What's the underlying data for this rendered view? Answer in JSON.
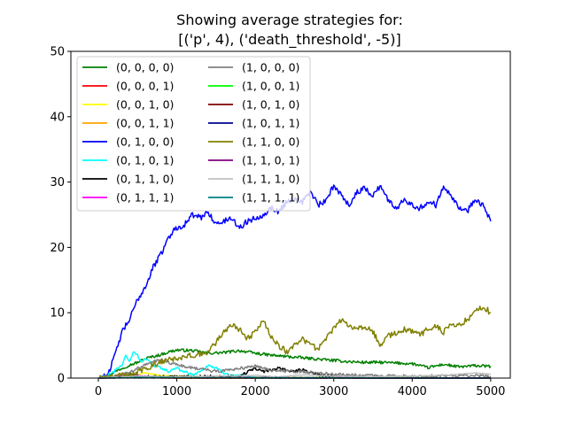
{
  "chart_data": {
    "type": "line",
    "title": "Showing average strategies for:",
    "subtitle": "[('p', 4), ('death_threshold', -5)]",
    "xlabel": "",
    "ylabel": "",
    "xlim": [
      -350,
      5250
    ],
    "ylim": [
      0,
      50
    ],
    "xticks": [
      0,
      1000,
      2000,
      3000,
      4000,
      5000
    ],
    "yticks": [
      0,
      10,
      20,
      30,
      40,
      50
    ],
    "grid": false,
    "legend_position": "upper-left",
    "legend_columns": 2,
    "series": [
      {
        "name": "(0, 0, 0, 0)",
        "color": "#008000",
        "x": [
          0,
          100,
          200,
          300,
          400,
          500,
          600,
          700,
          800,
          900,
          1000,
          1200,
          1400,
          1600,
          1800,
          2000,
          2200,
          2400,
          2600,
          2800,
          3000,
          3200,
          3400,
          3600,
          3800,
          4000,
          4200,
          4400,
          4600,
          4800,
          5000
        ],
        "y": [
          0,
          0.3,
          0.9,
          1.5,
          2,
          2.4,
          3,
          3.3,
          3.6,
          4,
          4.3,
          4.2,
          3.8,
          3.9,
          4.2,
          3.8,
          3.5,
          3.3,
          3.1,
          2.9,
          2.7,
          2.5,
          2.4,
          2.4,
          2.3,
          2.2,
          1.6,
          2.1,
          1.7,
          1.9,
          1.8
        ]
      },
      {
        "name": "(0, 0, 0, 1)",
        "color": "#ff0000",
        "x": [
          0,
          200,
          300,
          400,
          500,
          600,
          1000,
          5000
        ],
        "y": [
          0,
          0.1,
          0.4,
          0.2,
          0.3,
          0.1,
          0,
          0
        ]
      },
      {
        "name": "(0, 0, 1, 0)",
        "color": "#ffff00",
        "x": [
          0,
          200,
          300,
          400,
          500,
          600,
          800,
          1000,
          1200,
          1400,
          5000
        ],
        "y": [
          0,
          0.2,
          0.6,
          0.4,
          0.5,
          0.8,
          0.4,
          0.3,
          0.3,
          0.1,
          0
        ]
      },
      {
        "name": "(0, 0, 1, 1)",
        "color": "#ffa500",
        "x": [
          0,
          200,
          300,
          400,
          600,
          800,
          1000,
          5000
        ],
        "y": [
          0,
          0.1,
          0.3,
          0.2,
          0.2,
          0.1,
          0,
          0
        ]
      },
      {
        "name": "(0, 1, 0, 0)",
        "color": "#0000ff",
        "x": [
          0,
          100,
          150,
          200,
          250,
          300,
          350,
          400,
          450,
          500,
          550,
          600,
          650,
          700,
          750,
          800,
          850,
          900,
          950,
          1000,
          1100,
          1200,
          1300,
          1400,
          1500,
          1600,
          1700,
          1800,
          1900,
          2000,
          2100,
          2200,
          2300,
          2400,
          2500,
          2600,
          2700,
          2800,
          2900,
          3000,
          3100,
          3200,
          3300,
          3400,
          3500,
          3600,
          3700,
          3800,
          3900,
          4000,
          4100,
          4200,
          4300,
          4400,
          4500,
          4600,
          4700,
          4800,
          4900,
          5000
        ],
        "y": [
          0,
          0.3,
          1.5,
          3,
          5,
          7,
          8,
          9,
          10.5,
          12,
          13,
          14,
          15.5,
          17,
          18,
          19,
          20.5,
          21.5,
          22.5,
          23,
          23.5,
          25,
          24.5,
          25.5,
          23.5,
          24,
          24.5,
          23,
          24,
          24.5,
          25,
          26,
          25.5,
          27,
          27.5,
          27,
          28.5,
          26.5,
          27,
          29.5,
          28,
          26.5,
          28.5,
          29,
          28,
          29.5,
          27,
          26,
          27.5,
          26.5,
          26,
          27,
          26.5,
          29.5,
          28,
          26,
          25.5,
          27.5,
          26.5,
          24
        ]
      },
      {
        "name": "(0, 1, 0, 1)",
        "color": "#00ffff",
        "x": [
          0,
          100,
          200,
          300,
          350,
          400,
          450,
          500,
          550,
          600,
          700,
          800,
          900,
          1000,
          1100,
          1200,
          1300,
          1400,
          1500,
          1600,
          1700,
          1800,
          1900,
          2000,
          5000
        ],
        "y": [
          0,
          0.2,
          1,
          2,
          3.5,
          2.5,
          4,
          3.5,
          2.5,
          3,
          2,
          1.5,
          1,
          1.5,
          1,
          0.5,
          1,
          2,
          1.5,
          0.8,
          0.5,
          0.3,
          0.2,
          0,
          0
        ]
      },
      {
        "name": "(0, 1, 1, 0)",
        "color": "#000000",
        "x": [
          0,
          300,
          400,
          500,
          600,
          1000,
          1800,
          2000,
          2100,
          2200,
          2300,
          2400,
          2500,
          2600,
          2700,
          2800,
          3000,
          3500,
          5000
        ],
        "y": [
          0,
          0.3,
          0.5,
          0.3,
          0.2,
          0.2,
          0.3,
          1.5,
          1,
          1.2,
          1.6,
          1.2,
          1,
          1.3,
          0.8,
          0.5,
          0.2,
          0,
          0
        ]
      },
      {
        "name": "(0, 1, 1, 1)",
        "color": "#ff00ff",
        "x": [
          0,
          200,
          300,
          400,
          500,
          800,
          5000
        ],
        "y": [
          0,
          0.2,
          0.5,
          0.3,
          0.4,
          0.1,
          0
        ]
      },
      {
        "name": "(1, 0, 0, 0)",
        "color": "#808080",
        "x": [
          0,
          200,
          400,
          500,
          600,
          700,
          800,
          1000,
          1500,
          2000,
          2200,
          2500,
          3000,
          3500,
          4000,
          4500,
          5000
        ],
        "y": [
          0,
          0.3,
          0.8,
          1.5,
          2,
          2.5,
          2.8,
          2,
          1,
          1.8,
          1.2,
          1,
          0.6,
          0.4,
          0.3,
          0.4,
          0.3
        ]
      },
      {
        "name": "(1, 0, 0, 1)",
        "color": "#00ff00",
        "x": [
          0,
          300,
          500,
          800,
          5000
        ],
        "y": [
          0,
          0.1,
          0.2,
          0.1,
          0
        ]
      },
      {
        "name": "(1, 0, 1, 0)",
        "color": "#800000",
        "x": [
          0,
          300,
          500,
          800,
          5000
        ],
        "y": [
          0,
          0.1,
          0.1,
          0.05,
          0
        ]
      },
      {
        "name": "(1, 0, 1, 1)",
        "color": "#00008b",
        "x": [
          0,
          300,
          500,
          5000
        ],
        "y": [
          0,
          0.05,
          0.05,
          0
        ]
      },
      {
        "name": "(1, 1, 0, 0)",
        "color": "#808000",
        "x": [
          0,
          400,
          600,
          800,
          1000,
          1200,
          1400,
          1600,
          1700,
          1800,
          1900,
          2000,
          2100,
          2200,
          2300,
          2400,
          2500,
          2600,
          2700,
          2800,
          2900,
          3000,
          3100,
          3200,
          3300,
          3400,
          3500,
          3600,
          3700,
          3800,
          3900,
          4000,
          4100,
          4200,
          4300,
          4400,
          4500,
          4600,
          4700,
          4800,
          4900,
          5000
        ],
        "y": [
          0,
          0.5,
          1.5,
          2.5,
          3,
          3.5,
          4,
          7,
          8,
          7.5,
          6,
          7,
          9,
          6.5,
          5,
          4,
          5,
          6,
          5,
          4.5,
          6,
          7.5,
          9,
          8,
          7.5,
          8,
          7,
          5,
          6.5,
          7,
          7.5,
          7,
          6.5,
          7.5,
          8,
          7,
          8.5,
          8,
          9,
          10,
          11,
          10
        ]
      },
      {
        "name": "(1, 1, 0, 1)",
        "color": "#800080",
        "x": [
          0,
          500,
          1000,
          5000
        ],
        "y": [
          0,
          0.1,
          0.05,
          0
        ]
      },
      {
        "name": "(1, 1, 1, 0)",
        "color": "#c0c0c0",
        "x": [
          0,
          500,
          1000,
          2000,
          2300,
          2600,
          3000,
          3500,
          4000,
          4500,
          4800,
          5000
        ],
        "y": [
          0,
          0.3,
          0.2,
          0.4,
          0.2,
          0.5,
          0.3,
          0.2,
          0.3,
          0.5,
          0.8,
          0.6
        ]
      },
      {
        "name": "(1, 1, 1, 1)",
        "color": "#008080",
        "x": [
          0,
          500,
          1000,
          5000
        ],
        "y": [
          0,
          0.1,
          0.05,
          0
        ]
      }
    ]
  }
}
